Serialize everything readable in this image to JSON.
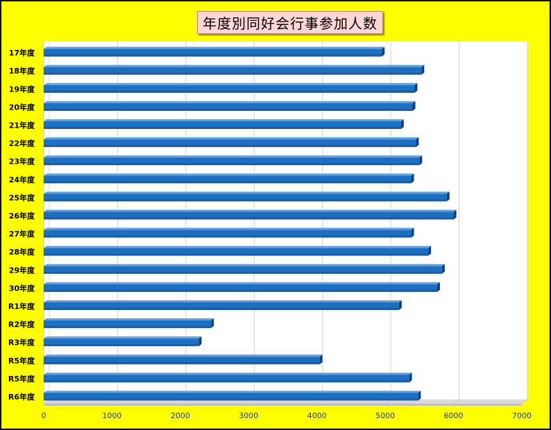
{
  "chart_data": {
    "type": "bar",
    "orientation": "horizontal",
    "title": "年度別同好会行事参加人数",
    "xlabel": "",
    "ylabel": "",
    "categories": [
      "17年度",
      "18年度",
      "19年度",
      "20年度",
      "21年度",
      "22年度",
      "23年度",
      "24年度",
      "25年度",
      "26年度",
      "27年度",
      "28年度",
      "29年度",
      "30年度",
      "R1年度",
      "R2年度",
      "R3年度",
      "R5年度",
      "R5年度",
      "R6年度"
    ],
    "values": [
      4950,
      5530,
      5430,
      5400,
      5230,
      5450,
      5500,
      5380,
      5900,
      6000,
      5380,
      5630,
      5830,
      5760,
      5200,
      2450,
      2270,
      4040,
      5350,
      5480
    ],
    "xlim": [
      0,
      7000
    ],
    "xticks": [
      "0",
      "1000",
      "2000",
      "3000",
      "4000",
      "5000",
      "6000",
      "7000"
    ],
    "grid": true,
    "legend": "none"
  },
  "colors": {
    "background": "#ffff00",
    "plot_area": "#ffffff",
    "bar_front": "#1f6fc0",
    "bar_top": "#5ea0e2",
    "bar_side": "#0d3f7a",
    "label_text": "#000000",
    "tick_text": "#1f3f7f"
  }
}
